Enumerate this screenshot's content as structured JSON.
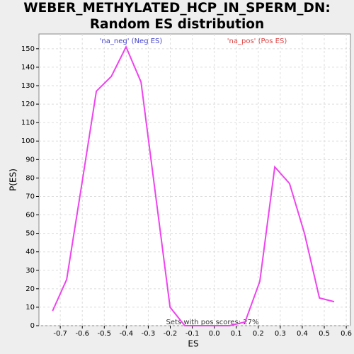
{
  "chart_data": {
    "type": "line",
    "title": "WEBER_METHYLATED_HCP_IN_SPERM_DN: Random ES distribution",
    "xlabel": "ES",
    "ylabel": "P(ES)",
    "annotations": [
      {
        "text": "'na_neg' (Neg ES)",
        "color": "#4444cc"
      },
      {
        "text": "'na_pos' (Pos ES)",
        "color": "#dd4444"
      },
      {
        "text": "Sets with pos scores: 27%",
        "color": "#333333"
      }
    ],
    "x": [
      -0.735,
      -0.671,
      -0.603,
      -0.536,
      -0.468,
      -0.401,
      -0.333,
      -0.201,
      -0.134,
      -0.066,
      0.001,
      0.069,
      0.14,
      0.207,
      0.275,
      0.342,
      0.41,
      0.478,
      0.545
    ],
    "series": [
      {
        "name": "P(ES)",
        "color": "#ee44ee",
        "values": [
          8,
          25,
          76,
          127,
          135,
          151,
          132,
          10,
          0,
          0,
          0,
          0,
          2,
          24,
          86,
          77,
          50,
          15,
          13
        ]
      }
    ],
    "xlim": [
      -0.797,
      0.619
    ],
    "ylim": [
      0,
      158
    ],
    "xticks": [
      -0.7,
      -0.6,
      -0.5,
      -0.4,
      -0.3,
      -0.2,
      -0.1,
      {
        "value": 0,
        "label": "0.0"
      },
      0.1,
      0.2,
      0.3,
      0.4,
      0.5,
      0.6
    ],
    "yticks": [
      0,
      10,
      20,
      30,
      40,
      50,
      60,
      70,
      80,
      90,
      100,
      110,
      120,
      130,
      140,
      150
    ],
    "grid": true
  }
}
